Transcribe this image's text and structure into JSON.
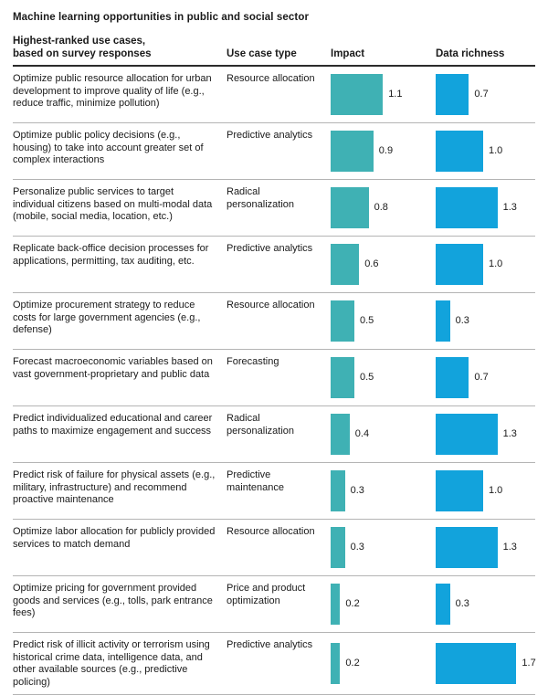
{
  "title": "Machine learning opportunities in public and social sector",
  "header": {
    "use_case_line1": "Highest-ranked use cases,",
    "use_case_line2": "based on survey responses",
    "type_col": "Use case type",
    "impact_col": "Impact",
    "data_richness_col": "Data richness"
  },
  "colors": {
    "impact_bar": "#3fb1b4",
    "data_richness_bar": "#12a3dc",
    "header_rule": "#2b2b2b",
    "row_rule": "#b4b4b4"
  },
  "chart_data": {
    "type": "bar",
    "orientation": "horizontal",
    "title": "Machine learning opportunities in public and social sector",
    "xlabel": "",
    "ylabel": "",
    "xlim": [
      0,
      1.8
    ],
    "grid": false,
    "legend_position": "column-headers",
    "categories": [
      "Optimize public resource allocation for urban development to improve quality of life (e.g., reduce traffic, minimize pollution)",
      "Optimize public policy decisions (e.g., housing) to take into account greater set of complex interactions",
      "Personalize public services to target individual citizens based on multi-modal data (mobile, social media, location, etc.)",
      "Replicate back-office decision processes for applications, permitting, tax auditing, etc.",
      "Optimize procurement strategy to reduce costs for large government agencies (e.g., defense)",
      "Forecast macroeconomic variables based on vast government-proprietary and public data",
      "Predict individualized educational and career paths to maximize engagement and success",
      "Predict risk of failure for physical assets (e.g., military, infrastructure) and recommend proactive maintenance",
      "Optimize labor allocation for publicly provided services to match demand",
      "Optimize pricing for government provided goods and services (e.g., tolls, park entrance fees)",
      "Predict risk of illicit activity or terrorism using historical crime data, intelligence data, and other available sources (e.g., predictive policing)"
    ],
    "use_case_types": [
      "Resource allocation",
      "Predictive analytics",
      "Radical personalization",
      "Predictive analytics",
      "Resource allocation",
      "Forecasting",
      "Radical personalization",
      "Predictive maintenance",
      "Resource allocation",
      "Price and product optimization",
      "Predictive analytics"
    ],
    "series": [
      {
        "name": "Impact",
        "values": [
          1.1,
          0.9,
          0.8,
          0.6,
          0.5,
          0.5,
          0.4,
          0.3,
          0.3,
          0.2,
          0.2
        ]
      },
      {
        "name": "Data richness",
        "values": [
          0.7,
          1.0,
          1.3,
          1.0,
          0.3,
          0.7,
          1.3,
          1.0,
          1.3,
          0.3,
          1.7
        ]
      }
    ]
  }
}
